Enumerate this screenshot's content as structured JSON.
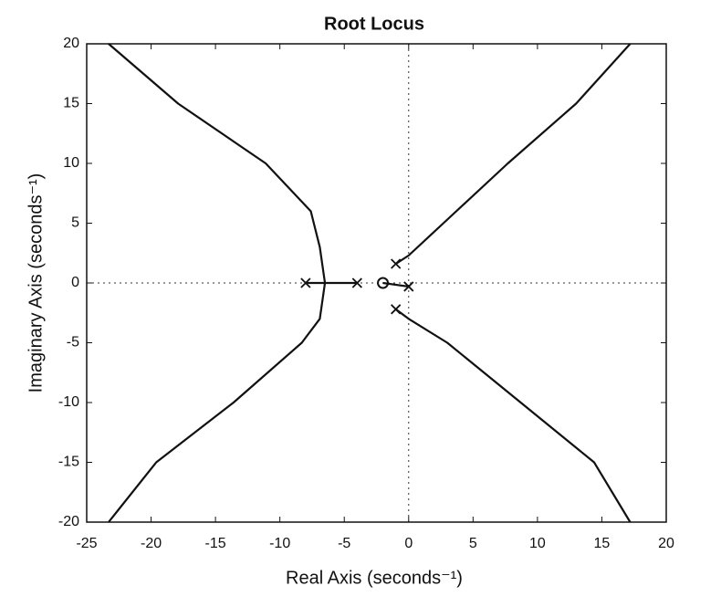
{
  "chart_data": {
    "type": "line",
    "title": "Root Locus",
    "xlabel": "Real Axis (seconds⁻¹)",
    "ylabel": "Imaginary Axis (seconds⁻¹)",
    "xlim": [
      -25,
      20
    ],
    "ylim": [
      -20,
      20
    ],
    "xticks": [
      -25,
      -20,
      -15,
      -10,
      -5,
      0,
      5,
      10,
      15,
      20
    ],
    "yticks": [
      -20,
      -15,
      -10,
      -5,
      0,
      5,
      10,
      15,
      20
    ],
    "series": [
      {
        "color": "#111111",
        "x": [
          -8,
          -6.5,
          -6.9,
          -7.6,
          -11.1,
          -17.9,
          -23.3
        ],
        "values": [
          0,
          0,
          3,
          6,
          10,
          15,
          20
        ]
      },
      {
        "color": "#111111",
        "x": [
          -6.5,
          -6.9,
          -8.3,
          -13.6,
          -19.6,
          -23.3
        ],
        "values": [
          0,
          -3,
          -5,
          -10,
          -15,
          -20
        ]
      },
      {
        "color": "#111111",
        "x": [
          -4,
          -6.5
        ],
        "values": [
          0,
          0
        ]
      },
      {
        "color": "#111111",
        "x": [
          0,
          -2
        ],
        "values": [
          -0.3,
          0
        ]
      },
      {
        "color": "#111111",
        "x": [
          -1,
          0,
          2.7,
          7.7,
          13,
          17.2
        ],
        "values": [
          1.6,
          2.3,
          5,
          10,
          15,
          20
        ]
      },
      {
        "color": "#111111",
        "x": [
          -1,
          0,
          3,
          8.7,
          14.4,
          17.2
        ],
        "values": [
          -2.2,
          -3,
          -5,
          -10,
          -15,
          -20
        ]
      },
      {
        "color": "#111111",
        "marker": "x",
        "x": [
          -8,
          -4,
          0,
          -1,
          -1
        ],
        "values": [
          0,
          0,
          -0.3,
          1.6,
          -2.2
        ]
      },
      {
        "color": "#111111",
        "marker": "o",
        "x": [
          -2
        ],
        "values": [
          0
        ]
      }
    ]
  }
}
